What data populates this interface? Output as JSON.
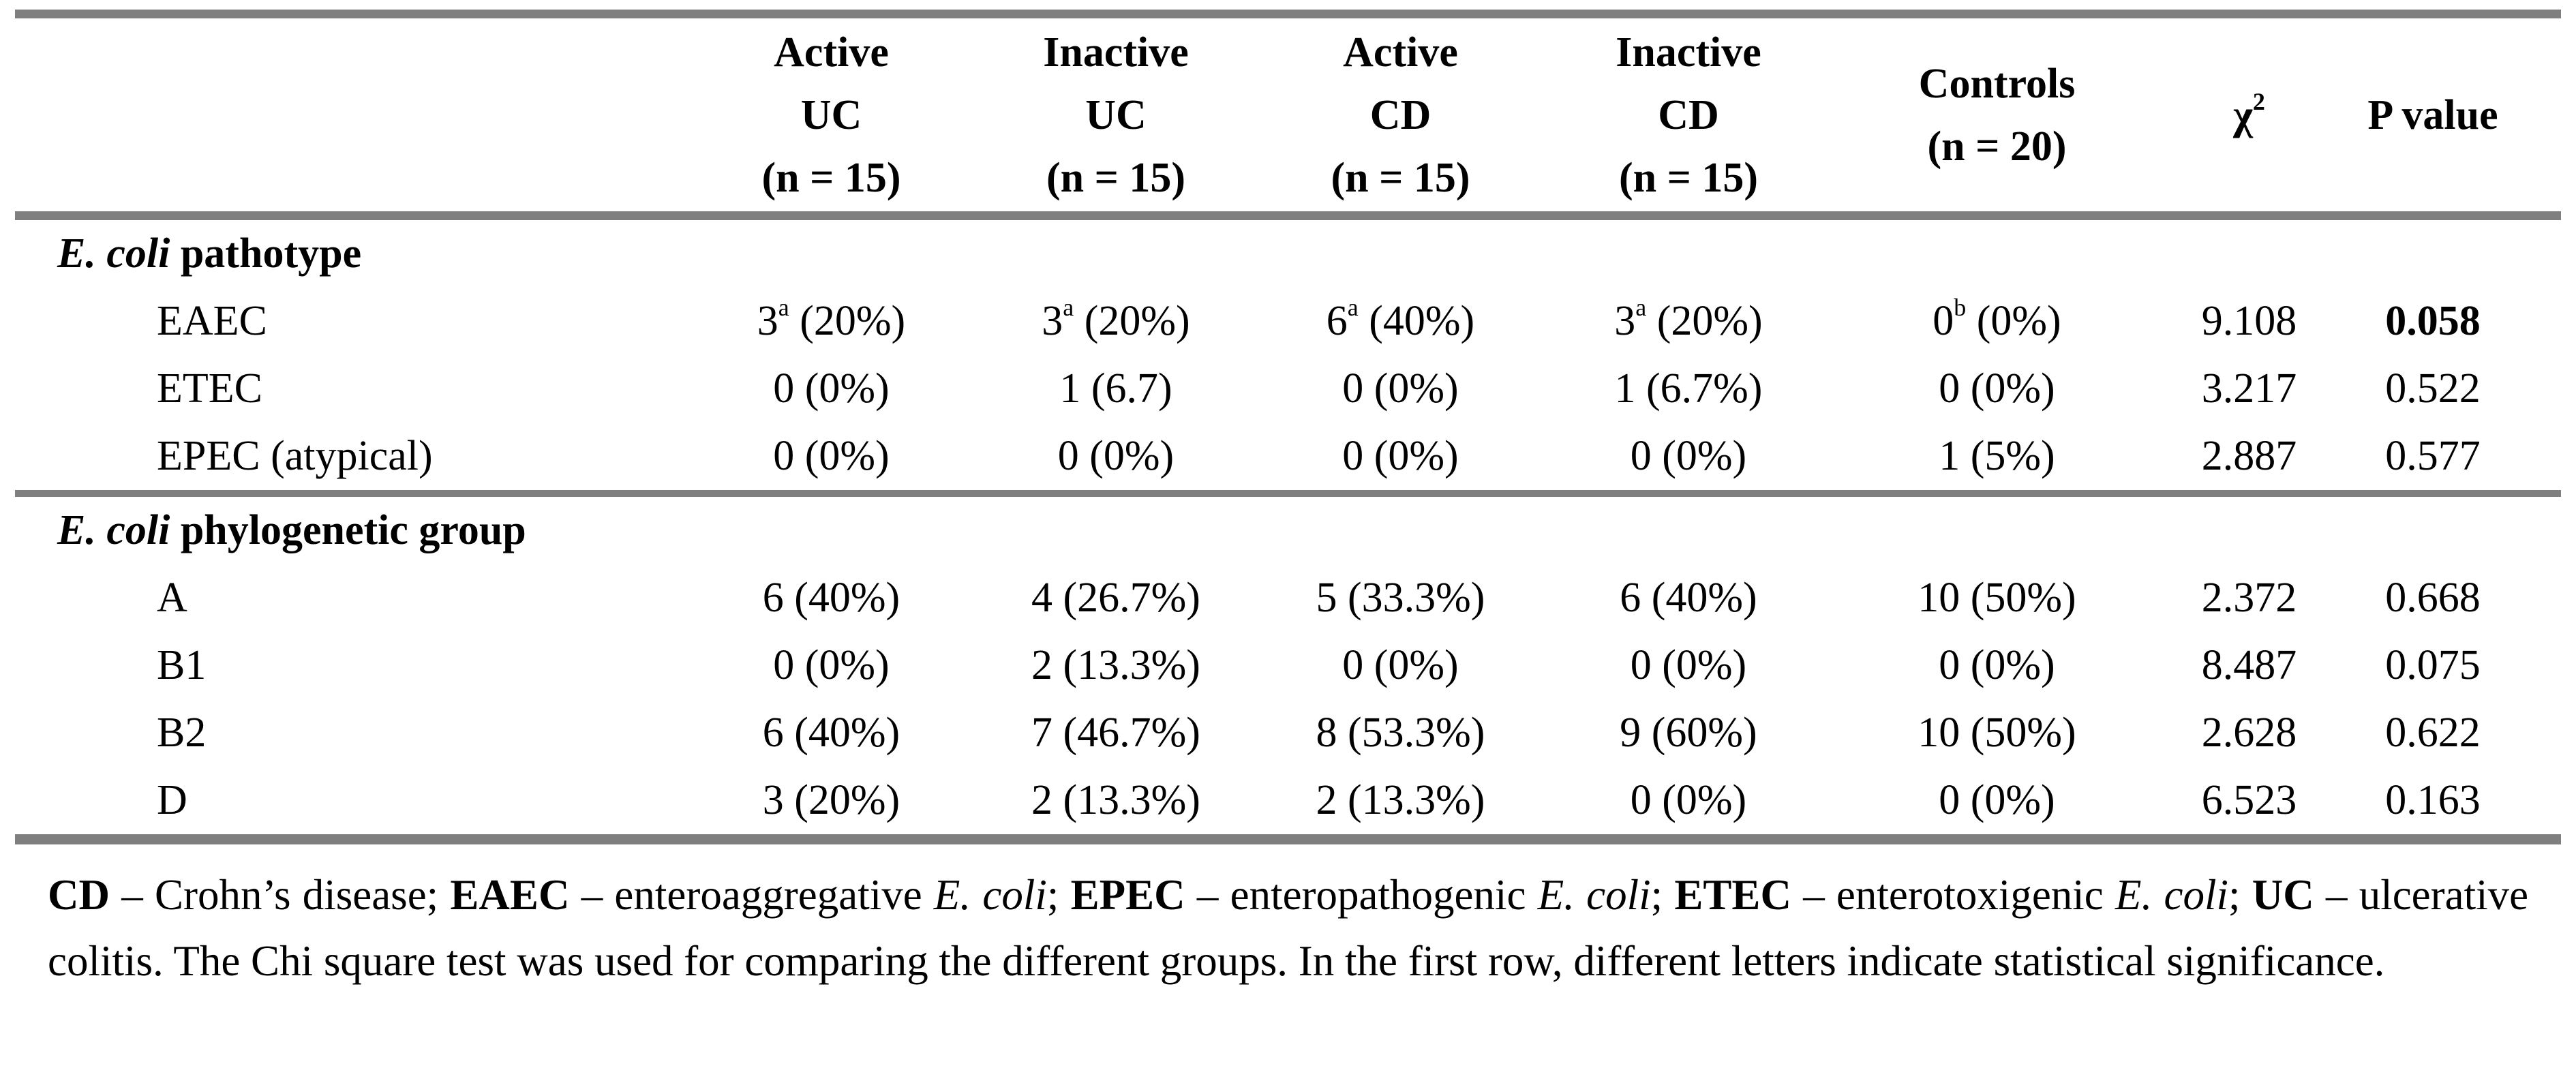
{
  "table": {
    "columns": [
      {
        "key": "row_label",
        "lines": []
      },
      {
        "key": "active_uc",
        "lines": [
          "Active",
          "UC",
          "(n = 15)"
        ]
      },
      {
        "key": "inactive_uc",
        "lines": [
          "Inactive",
          "UC",
          "(n = 15)"
        ]
      },
      {
        "key": "active_cd",
        "lines": [
          "Active",
          "CD",
          "(n = 15)"
        ]
      },
      {
        "key": "inactive_cd",
        "lines": [
          "Inactive",
          "CD",
          "(n = 15)"
        ]
      },
      {
        "key": "controls",
        "lines": [
          "Controls",
          "(n = 20)"
        ]
      },
      {
        "key": "chi_square",
        "base": "χ",
        "sup": "2"
      },
      {
        "key": "p_value",
        "lines": [
          "P value"
        ]
      }
    ],
    "sections": [
      {
        "title_italic": "E. coli",
        "title_rest": " pathotype",
        "rows": [
          {
            "label": "EAEC",
            "cells": [
              {
                "base": "3",
                "sup": "a",
                "rest": " (20%)"
              },
              {
                "base": "3",
                "sup": "a",
                "rest": " (20%)"
              },
              {
                "base": "6",
                "sup": "a",
                "rest": " (40%)"
              },
              {
                "base": "3",
                "sup": "a",
                "rest": " (20%)"
              },
              {
                "base": "0",
                "sup": "b",
                "rest": " (0%)"
              },
              {
                "text": "9.108"
              },
              {
                "text": "0.058",
                "bold": true
              }
            ]
          },
          {
            "label": "ETEC",
            "cells": [
              "0 (0%)",
              "1 (6.7)",
              "0 (0%)",
              "1 (6.7%)",
              "0 (0%)",
              "3.217",
              "0.522"
            ]
          },
          {
            "label": "EPEC (atypical)",
            "cells": [
              "0 (0%)",
              "0 (0%)",
              "0 (0%)",
              "0 (0%)",
              "1 (5%)",
              "2.887",
              "0.577"
            ]
          }
        ]
      },
      {
        "title_italic": "E. coli",
        "title_rest": " phylogenetic group",
        "rows": [
          {
            "label": "A",
            "cells": [
              "6 (40%)",
              "4 (26.7%)",
              "5 (33.3%)",
              "6 (40%)",
              "10 (50%)",
              "2.372",
              "0.668"
            ]
          },
          {
            "label": "B1",
            "cells": [
              "0 (0%)",
              "2 (13.3%)",
              "0 (0%)",
              "0 (0%)",
              "0 (0%)",
              "8.487",
              "0.075"
            ]
          },
          {
            "label": "B2",
            "cells": [
              "6 (40%)",
              "7 (46.7%)",
              "8 (53.3%)",
              "9 (60%)",
              "10 (50%)",
              "2.628",
              "0.622"
            ]
          },
          {
            "label": "D",
            "cells": [
              "3 (20%)",
              "2 (13.3%)",
              "2 (13.3%)",
              "0 (0%)",
              "0 (0%)",
              "6.523",
              "0.163"
            ]
          }
        ]
      }
    ]
  },
  "footnote": {
    "runs": [
      {
        "t": "CD",
        "b": true
      },
      {
        "t": " – Crohn’s disease; "
      },
      {
        "t": "EAEC",
        "b": true
      },
      {
        "t": " – enteroaggregative "
      },
      {
        "t": "E. coli",
        "i": true
      },
      {
        "t": "; "
      },
      {
        "t": "EPEC",
        "b": true
      },
      {
        "t": " – enteropathogenic "
      },
      {
        "t": "E. coli",
        "i": true
      },
      {
        "t": "; "
      },
      {
        "t": "ETEC",
        "b": true
      },
      {
        "t": " – enterotoxigenic "
      },
      {
        "t": "E. coli",
        "i": true
      },
      {
        "t": "; "
      },
      {
        "t": "UC",
        "b": true
      },
      {
        "t": " – ulcerative colitis. The Chi square test was used for comparing the different groups. In the first row, different letters indicate statistical significance."
      }
    ]
  },
  "colors": {
    "rule": "#7f7f7f",
    "text": "#000000",
    "background": "#ffffff"
  }
}
